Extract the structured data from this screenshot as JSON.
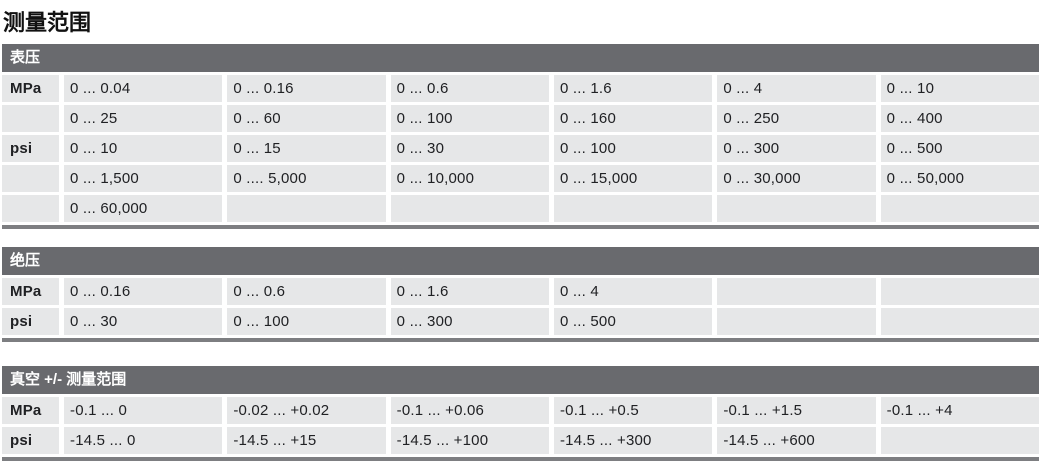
{
  "page": {
    "title": "测量范围"
  },
  "colors": {
    "section_header_bg": "#696a6e",
    "section_header_text": "#ffffff",
    "cell_bg": "#e6e7e8",
    "bottom_rule": "#7d7e81",
    "body_text": "#202124"
  },
  "tables": [
    {
      "header": "表压",
      "rows": [
        {
          "label": "MPa",
          "values": [
            "0 ... 0.04",
            "0 ... 0.16",
            "0 ... 0.6",
            "0 ... 1.6",
            "0 ... 4",
            "0 ... 10"
          ]
        },
        {
          "label": "",
          "values": [
            "0 ... 25",
            "0 ... 60",
            "0 ... 100",
            "0 ... 160",
            "0 ... 250",
            "0 ... 400"
          ]
        },
        {
          "label": "psi",
          "values": [
            "0 ... 10",
            "0 ... 15",
            "0 ... 30",
            "0 ... 100",
            "0 ... 300",
            "0 ... 500"
          ]
        },
        {
          "label": "",
          "values": [
            "0 ... 1,500",
            "0 .... 5,000",
            "0 ... 10,000",
            "0 ... 15,000",
            "0 ... 30,000",
            "0 ... 50,000"
          ]
        },
        {
          "label": "",
          "values": [
            "0 ... 60,000",
            "",
            "",
            "",
            "",
            ""
          ]
        }
      ]
    },
    {
      "header": "绝压",
      "rows": [
        {
          "label": "MPa",
          "values": [
            "0 ... 0.16",
            "0 ... 0.6",
            "0 ... 1.6",
            "0 ... 4",
            "",
            ""
          ]
        },
        {
          "label": "psi",
          "values": [
            "0 ... 30",
            "0 ... 100",
            "0 ... 300",
            "0 ... 500",
            "",
            ""
          ]
        }
      ]
    },
    {
      "header": "真空 +/- 测量范围",
      "rows": [
        {
          "label": "MPa",
          "values": [
            "-0.1 ... 0",
            "-0.02 ... +0.02",
            "-0.1 ... +0.06",
            "-0.1 ... +0.5",
            "-0.1 ... +1.5",
            "-0.1 ... +4"
          ]
        },
        {
          "label": "psi",
          "values": [
            "-14.5 ... 0",
            "-14.5 ... +15",
            "-14.5 ... +100",
            "-14.5 ... +300",
            "-14.5 ... +600",
            ""
          ]
        }
      ]
    }
  ]
}
